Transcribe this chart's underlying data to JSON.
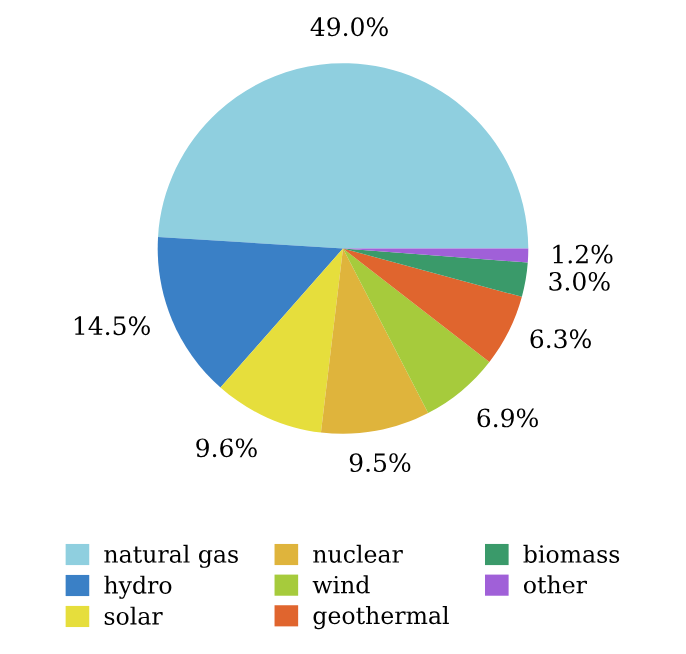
{
  "chart_data": {
    "type": "pie",
    "categories": [
      "natural gas",
      "hydro",
      "solar",
      "nuclear",
      "wind",
      "geothermal",
      "biomass",
      "other"
    ],
    "values": [
      49.0,
      14.5,
      9.6,
      9.5,
      6.9,
      6.3,
      3.0,
      1.2
    ],
    "value_labels": [
      "49.0%",
      "14.5%",
      "9.6%",
      "9.5%",
      "6.9%",
      "6.3%",
      "3.0%",
      "1.2%"
    ],
    "colors": [
      "#8fcfdf",
      "#3a80c6",
      "#e6de3c",
      "#dfb43c",
      "#a6cb3c",
      "#e0652e",
      "#3a9a6a",
      "#a060d8"
    ],
    "legend": "bottom"
  }
}
